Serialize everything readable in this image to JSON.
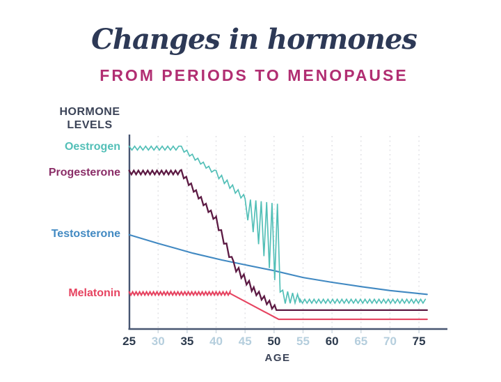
{
  "header": {
    "title": "Changes in hormones",
    "subtitle": "FROM PERIODS TO MENOPAUSE"
  },
  "chart_data": {
    "type": "line",
    "title": "Changes in hormones",
    "subtitle": "FROM PERIODS TO MENOPAUSE",
    "xlabel": "AGE",
    "ylabel": "HORMONE LEVELS",
    "ylabel_lines": [
      "HORMONE",
      "LEVELS"
    ],
    "x_range": [
      25,
      80
    ],
    "y_range": [
      0,
      100
    ],
    "grid": {
      "style": "vertical-dashed",
      "at": [
        30,
        35,
        40,
        45,
        50,
        55,
        60,
        65,
        70,
        75
      ]
    },
    "legend_position": "left-of-axis",
    "x_ticks": [
      {
        "value": 25,
        "label": "25",
        "emphasis": true
      },
      {
        "value": 30,
        "label": "30",
        "emphasis": false
      },
      {
        "value": 35,
        "label": "35",
        "emphasis": true
      },
      {
        "value": 40,
        "label": "40",
        "emphasis": false
      },
      {
        "value": 45,
        "label": "45",
        "emphasis": false
      },
      {
        "value": 50,
        "label": "50",
        "emphasis": true
      },
      {
        "value": 55,
        "label": "55",
        "emphasis": false
      },
      {
        "value": 60,
        "label": "60",
        "emphasis": true
      },
      {
        "value": 65,
        "label": "65",
        "emphasis": false
      },
      {
        "value": 70,
        "label": "70",
        "emphasis": false
      },
      {
        "value": 75,
        "label": "75",
        "emphasis": true
      }
    ],
    "colors": {
      "title": "#2d3956",
      "subtitle": "#b12e72",
      "text": "#3b4357",
      "axis": "#475571",
      "grid": "#e0e0e4",
      "tick_stub": "#c9d6df",
      "tick_emphasis": "#2c3a4d",
      "tick_muted": "#b5cedd"
    },
    "series": [
      {
        "name": "Oestrogen",
        "color": "#52bfb7",
        "stroke_width": 1.7,
        "pattern": "zigzag",
        "segments": [
          {
            "x": [
              25,
              34
            ],
            "level": [
              93,
              93
            ],
            "amp": 1.0,
            "wl": 0.95
          },
          {
            "x": [
              34,
              40
            ],
            "level": [
              93,
              80
            ],
            "amp": 1.0,
            "wl": 0.95
          },
          {
            "x": [
              40,
              45
            ],
            "level": [
              80,
              67
            ],
            "amp": 1.5,
            "wl": 0.95
          },
          {
            "x": [
              45,
              51.5
            ],
            "level": [
              63,
              40
            ],
            "amp": [
              4,
              24
            ],
            "wl": 0.93
          },
          {
            "x": [
              51.5,
              54.5
            ],
            "level": [
              16.5,
              15.5
            ],
            "amp": [
              3.5,
              2
            ],
            "wl": 0.85
          },
          {
            "x": [
              54.5,
              76.4
            ],
            "level": [
              14.3,
              14.3
            ],
            "amp": 1.0,
            "wl": 0.8
          }
        ]
      },
      {
        "name": "Progesterone",
        "color": "#5c1a43",
        "label_color": "#8a2d67",
        "stroke_width": 2.3,
        "pattern": "zigzag",
        "segments": [
          {
            "x": [
              25,
              34
            ],
            "level": [
              80.5,
              80.5
            ],
            "amp": 1.0,
            "wl": 0.8
          },
          {
            "x": [
              34,
              40
            ],
            "level": [
              80.5,
              56
            ],
            "amp": 1.3,
            "wl": 0.85
          },
          {
            "x": [
              40,
              43
            ],
            "level": [
              56,
              33
            ],
            "amp": 1.8,
            "wl": 0.9
          },
          {
            "x": [
              43,
              46.5
            ],
            "level": [
              33,
              20
            ],
            "amp": 1.8,
            "wl": 0.9
          },
          {
            "x": [
              46.5,
              50.4
            ],
            "level": [
              20,
              10
            ],
            "amp": 1.5,
            "wl": 0.9
          },
          {
            "x": [
              50.4,
              76.4
            ],
            "level": [
              9.7,
              9.7
            ],
            "amp": 0,
            "wl": 0
          }
        ]
      },
      {
        "name": "Testosterone",
        "color": "#4189c2",
        "stroke_width": 2.1,
        "pattern": "smooth",
        "points": [
          [
            25,
            48.5
          ],
          [
            30,
            44
          ],
          [
            36,
            39
          ],
          [
            41,
            35.5
          ],
          [
            45,
            33
          ],
          [
            50,
            30
          ],
          [
            55,
            26.5
          ],
          [
            60,
            24
          ],
          [
            65,
            21.8
          ],
          [
            70,
            19.8
          ],
          [
            76.4,
            17.8
          ]
        ]
      },
      {
        "name": "Melatonin",
        "color": "#e64360",
        "stroke_width": 2.1,
        "pattern": "zigzag",
        "segments": [
          {
            "x": [
              25,
              42.4
            ],
            "level": [
              18.3,
              18.3
            ],
            "amp": 0.8,
            "wl": 0.6
          },
          {
            "x": [
              42.4,
              50.8
            ],
            "level": [
              18.3,
              5
            ],
            "amp": 0,
            "wl": 0
          },
          {
            "x": [
              50.8,
              76.4
            ],
            "level": [
              5,
              5
            ],
            "amp": 0,
            "wl": 0
          }
        ]
      }
    ]
  }
}
